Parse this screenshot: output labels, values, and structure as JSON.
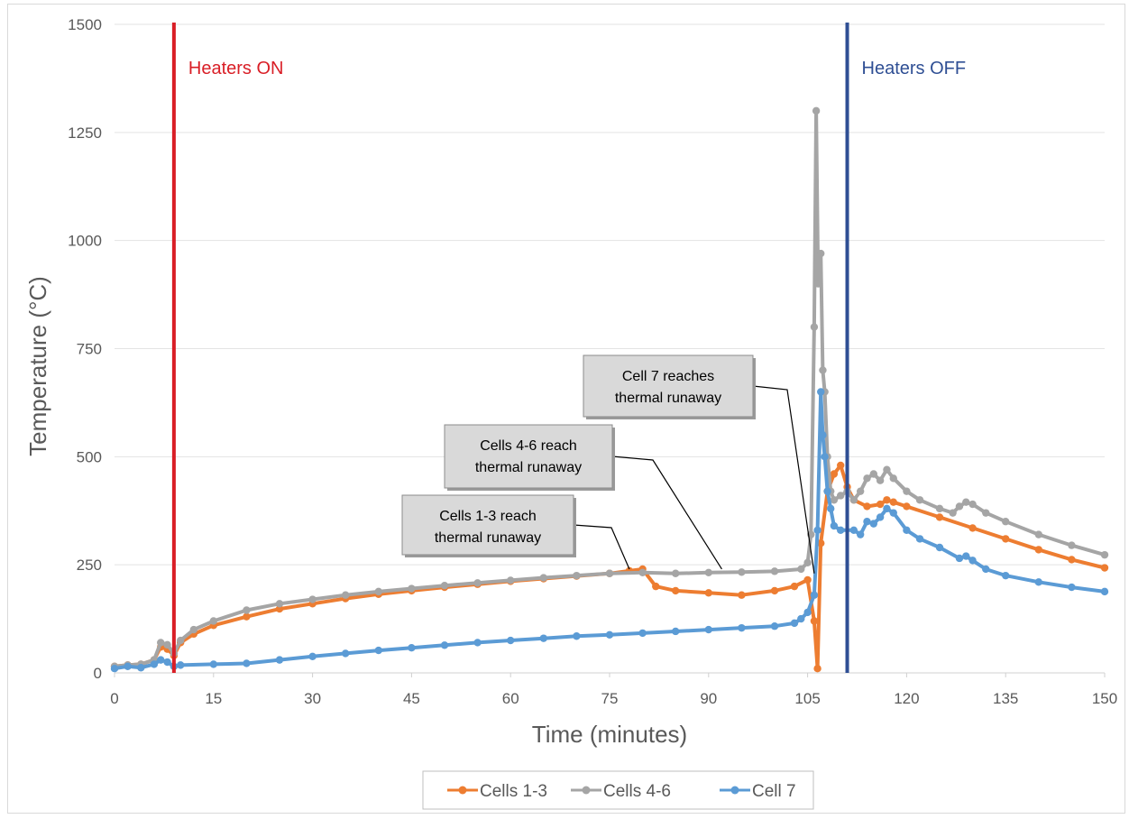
{
  "chart_data": {
    "type": "line",
    "title": "",
    "xlabel": "Time (minutes)",
    "ylabel": "Temperature (°C)",
    "xlim": [
      0,
      150
    ],
    "ylim": [
      0,
      1500
    ],
    "xticks": [
      0,
      15,
      30,
      45,
      60,
      75,
      90,
      105,
      120,
      135,
      150
    ],
    "yticks": [
      0,
      250,
      500,
      750,
      1000,
      1250,
      1500
    ],
    "grid": "horizontal",
    "legend_position": "bottom",
    "series": [
      {
        "name": "Cells 1-3",
        "color": "#ed7d31",
        "x": [
          0,
          2,
          4,
          6,
          7,
          8,
          9,
          10,
          12,
          15,
          20,
          25,
          30,
          35,
          40,
          45,
          50,
          55,
          60,
          65,
          70,
          75,
          78,
          80,
          82,
          85,
          90,
          95,
          100,
          103,
          105,
          106,
          106.5,
          107,
          108,
          109,
          110,
          111,
          112,
          114,
          116,
          117,
          118,
          120,
          125,
          130,
          135,
          140,
          145,
          150
        ],
        "y": [
          15,
          18,
          20,
          30,
          60,
          55,
          40,
          70,
          90,
          110,
          130,
          148,
          160,
          172,
          182,
          190,
          198,
          205,
          212,
          218,
          224,
          230,
          236,
          240,
          200,
          190,
          185,
          180,
          190,
          200,
          215,
          120,
          10,
          300,
          420,
          460,
          480,
          430,
          400,
          385,
          390,
          400,
          395,
          385,
          360,
          335,
          310,
          285,
          262,
          243
        ]
      },
      {
        "name": "Cells 4-6",
        "color": "#a5a5a5",
        "x": [
          0,
          2,
          4,
          6,
          7,
          8,
          9,
          10,
          12,
          15,
          20,
          25,
          30,
          35,
          40,
          45,
          50,
          55,
          60,
          65,
          70,
          75,
          80,
          85,
          90,
          95,
          100,
          104,
          105,
          105.5,
          106,
          106.3,
          106.6,
          107,
          107.3,
          107.6,
          108,
          108.5,
          109,
          110,
          111,
          112,
          113,
          114,
          115,
          116,
          117,
          118,
          120,
          122,
          125,
          127,
          128,
          129,
          130,
          132,
          135,
          140,
          145,
          150
        ],
        "y": [
          15,
          18,
          20,
          30,
          70,
          65,
          45,
          75,
          100,
          120,
          145,
          160,
          170,
          180,
          188,
          195,
          202,
          208,
          214,
          220,
          225,
          230,
          232,
          230,
          232,
          233,
          235,
          240,
          255,
          320,
          800,
          1300,
          900,
          970,
          700,
          650,
          500,
          420,
          400,
          410,
          420,
          400,
          420,
          450,
          460,
          445,
          470,
          450,
          420,
          400,
          380,
          370,
          385,
          395,
          390,
          370,
          350,
          320,
          295,
          273
        ]
      },
      {
        "name": "Cell 7",
        "color": "#5b9bd5",
        "x": [
          0,
          2,
          4,
          6,
          7,
          8,
          9,
          10,
          15,
          20,
          25,
          30,
          35,
          40,
          45,
          50,
          55,
          60,
          65,
          70,
          75,
          80,
          85,
          90,
          95,
          100,
          103,
          104,
          105,
          106,
          106.5,
          107,
          107.3,
          107.6,
          108,
          108.5,
          109,
          110,
          112,
          113,
          114,
          115,
          116,
          117,
          118,
          120,
          122,
          125,
          128,
          129,
          130,
          132,
          135,
          140,
          145,
          150
        ],
        "y": [
          10,
          15,
          12,
          20,
          30,
          25,
          15,
          18,
          20,
          22,
          30,
          38,
          45,
          52,
          58,
          64,
          70,
          75,
          80,
          85,
          88,
          92,
          96,
          100,
          104,
          108,
          115,
          125,
          140,
          180,
          330,
          650,
          550,
          500,
          420,
          380,
          340,
          330,
          330,
          320,
          350,
          345,
          360,
          380,
          370,
          330,
          310,
          290,
          265,
          270,
          260,
          240,
          225,
          210,
          198,
          188
        ]
      }
    ],
    "vertical_lines": [
      {
        "x": 9,
        "label": "Heaters ON",
        "color": "#d91e26"
      },
      {
        "x": 111,
        "label": "Heaters OFF",
        "color": "#2f4f94"
      }
    ],
    "annotations": [
      {
        "lines": [
          "Cell 7 reaches",
          "thermal runaway"
        ],
        "point": [
          106,
          230
        ]
      },
      {
        "lines": [
          "Cells 4-6 reach",
          "thermal runaway"
        ],
        "point": [
          92,
          240
        ]
      },
      {
        "lines": [
          "Cells 1-3 reach",
          "thermal runaway"
        ],
        "point": [
          78,
          240
        ]
      }
    ]
  }
}
